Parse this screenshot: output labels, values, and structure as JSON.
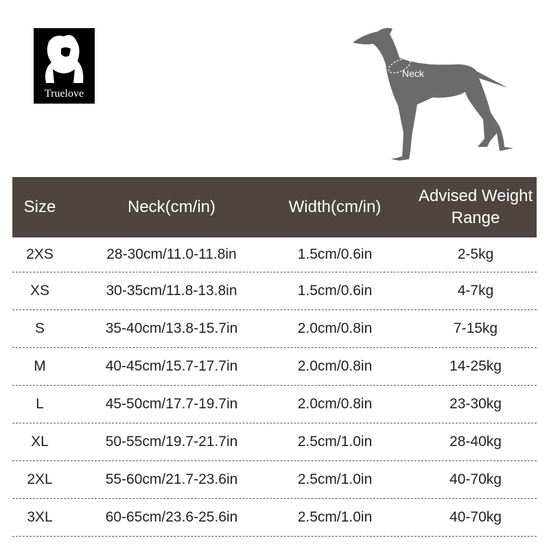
{
  "brand": {
    "logo_text": "Truelove"
  },
  "illustration": {
    "neck_label": "Neck"
  },
  "colors": {
    "header_bg": "#4e4542",
    "dog": "#6b6b6b"
  },
  "table": {
    "headers": [
      "Size",
      "Neck(cm/in)",
      "Width(cm/in)",
      "Advised Weight Range"
    ],
    "rows": [
      [
        "2XS",
        "28-30cm/11.0-11.8in",
        "1.5cm/0.6in",
        "2-5kg"
      ],
      [
        "XS",
        "30-35cm/11.8-13.8in",
        "1.5cm/0.6in",
        "4-7kg"
      ],
      [
        "S",
        "35-40cm/13.8-15.7in",
        "2.0cm/0.8in",
        "7-15kg"
      ],
      [
        "M",
        "40-45cm/15.7-17.7in",
        "2.0cm/0.8in",
        "14-25kg"
      ],
      [
        "L",
        "45-50cm/17.7-19.7in",
        "2.0cm/0.8in",
        "23-30kg"
      ],
      [
        "XL",
        "50-55cm/19.7-21.7in",
        "2.5cm/1.0in",
        "28-40kg"
      ],
      [
        "2XL",
        "55-60cm/21.7-23.6in",
        "2.5cm/1.0in",
        "40-70kg"
      ],
      [
        "3XL",
        "60-65cm/23.6-25.6in",
        "2.5cm/1.0in",
        "40-70kg"
      ]
    ]
  }
}
